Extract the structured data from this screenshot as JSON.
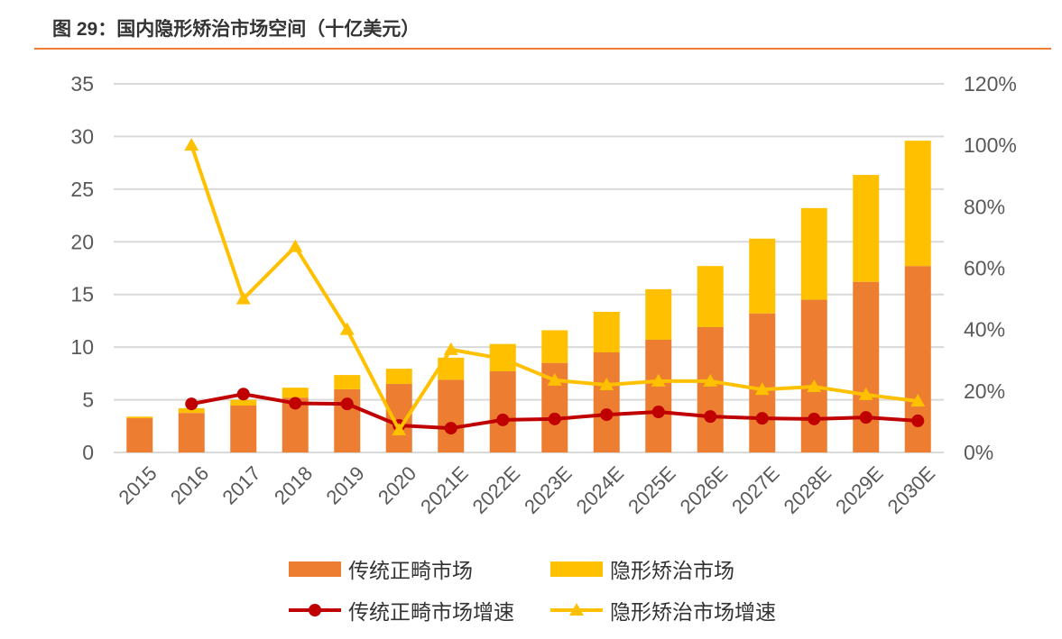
{
  "title": "图 29：国内隐形矫治市场空间（十亿美元）",
  "colors": {
    "traditional": "#ed7d31",
    "invisible": "#ffc000",
    "traditional_growth": "#c00000",
    "invisible_growth": "#ffc000",
    "rule": "#ed7d31"
  },
  "chart_data": {
    "type": "bar+line",
    "stacked": true,
    "categories": [
      "2015",
      "2016",
      "2017",
      "2018",
      "2019",
      "2020",
      "2021E",
      "2022E",
      "2023E",
      "2024E",
      "2025E",
      "2026E",
      "2027E",
      "2028E",
      "2029E",
      "2030E"
    ],
    "y_left": {
      "range": [
        0,
        35
      ],
      "ticks": [
        "0",
        "5",
        "10",
        "15",
        "20",
        "25",
        "30",
        "35"
      ]
    },
    "y_right": {
      "range": [
        0,
        1.2
      ],
      "ticks": [
        "0%",
        "20%",
        "40%",
        "60%",
        "80%",
        "100%",
        "120%"
      ]
    },
    "grid": true,
    "legend_position": "bottom",
    "series": [
      {
        "name": "传统正畸市场",
        "type": "bar",
        "axis": "left",
        "values": [
          3.25,
          3.75,
          4.45,
          5.2,
          6.0,
          6.5,
          6.9,
          7.7,
          8.5,
          9.5,
          10.7,
          11.9,
          13.2,
          14.5,
          16.2,
          17.7
        ]
      },
      {
        "name": "隐形矫治市场",
        "type": "bar",
        "axis": "left",
        "values": [
          0.15,
          0.45,
          0.55,
          0.95,
          1.35,
          1.45,
          2.1,
          2.6,
          3.1,
          3.85,
          4.8,
          5.8,
          7.1,
          8.7,
          10.15,
          11.9
        ]
      },
      {
        "name": "传统正畸市场增速",
        "type": "line",
        "marker": "circle",
        "axis": "right",
        "values": [
          null,
          0.158,
          0.19,
          0.16,
          0.158,
          0.088,
          0.079,
          0.106,
          0.109,
          0.123,
          0.132,
          0.117,
          0.111,
          0.109,
          0.114,
          0.103
        ]
      },
      {
        "name": "隐形矫治市场增速",
        "type": "line",
        "marker": "triangle",
        "axis": "right",
        "values": [
          null,
          1.0,
          0.5,
          0.67,
          0.4,
          0.073,
          0.335,
          0.305,
          0.235,
          0.22,
          0.232,
          0.232,
          0.205,
          0.214,
          0.188,
          0.167
        ]
      }
    ]
  }
}
